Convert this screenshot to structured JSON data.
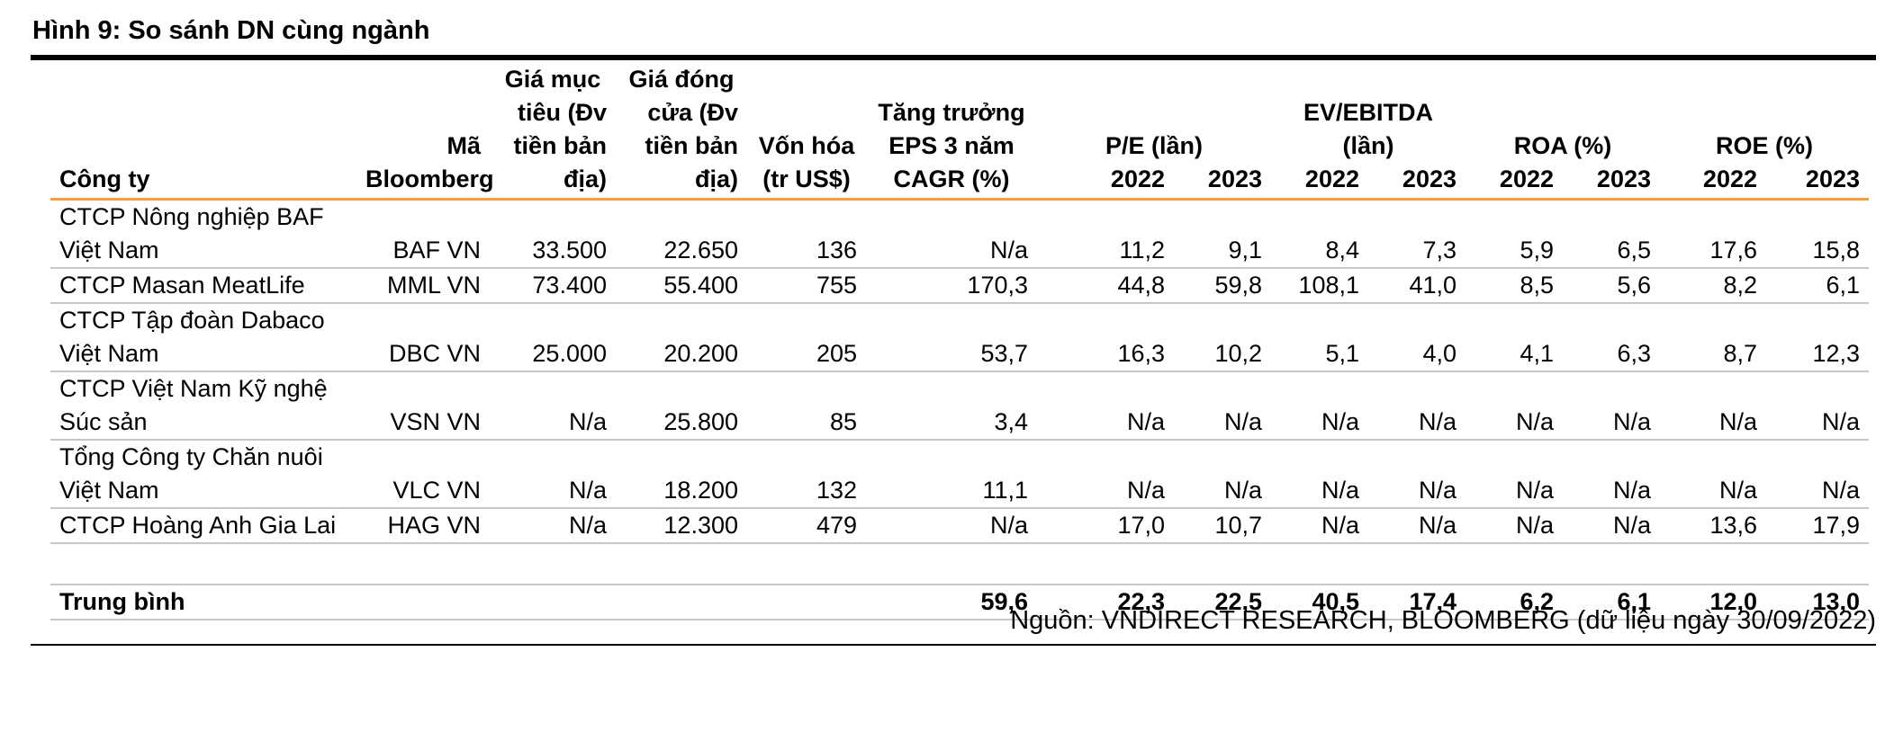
{
  "figure_title": "Hình 9: So sánh DN cùng ngành",
  "headers": {
    "company": "Công ty",
    "bloomberg_l1": "Mã",
    "bloomberg_l2": "Bloomberg",
    "target_l1": "Giá mục",
    "target_l2": "tiêu (Đv",
    "target_l3": "tiền bản",
    "target_l4": "địa)",
    "close_l1": "Giá đóng",
    "close_l2": "cửa (Đv",
    "close_l3": "tiền bản",
    "close_l4": "địa)",
    "mcap_l1": "Vốn hóa",
    "mcap_l2": "(tr US$)",
    "eps_l1": "Tăng trưởng",
    "eps_l2": "EPS 3 năm",
    "eps_l3": "CAGR (%)",
    "pe": "P/E (lần)",
    "ev_l1": "EV/EBITDA",
    "ev_l2": "(lần)",
    "roa": "ROA (%)",
    "roe": "ROE (%)",
    "y2022": "2022",
    "y2023": "2023"
  },
  "rows": [
    {
      "company_l1": "CTCP Nông nghiệp BAF",
      "company_l2": "Việt Nam",
      "ticker": "BAF VN",
      "target": "33.500",
      "close": "22.650",
      "mcap": "136",
      "eps_cagr": "N/a",
      "pe_2022": "11,2",
      "pe_2023": "9,1",
      "ev_2022": "8,4",
      "ev_2023": "7,3",
      "roa_2022": "5,9",
      "roa_2023": "6,5",
      "roe_2022": "17,6",
      "roe_2023": "15,8"
    },
    {
      "company_l1": "CTCP Masan MeatLife",
      "company_l2": "",
      "ticker": "MML VN",
      "target": "73.400",
      "close": "55.400",
      "mcap": "755",
      "eps_cagr": "170,3",
      "pe_2022": "44,8",
      "pe_2023": "59,8",
      "ev_2022": "108,1",
      "ev_2023": "41,0",
      "roa_2022": "8,5",
      "roa_2023": "5,6",
      "roe_2022": "8,2",
      "roe_2023": "6,1"
    },
    {
      "company_l1": "CTCP Tập đoàn Dabaco",
      "company_l2": "Việt Nam",
      "ticker": "DBC VN",
      "target": "25.000",
      "close": "20.200",
      "mcap": "205",
      "eps_cagr": "53,7",
      "pe_2022": "16,3",
      "pe_2023": "10,2",
      "ev_2022": "5,1",
      "ev_2023": "4,0",
      "roa_2022": "4,1",
      "roa_2023": "6,3",
      "roe_2022": "8,7",
      "roe_2023": "12,3"
    },
    {
      "company_l1": "CTCP Việt Nam Kỹ nghệ",
      "company_l2": "Súc sản",
      "ticker": "VSN VN",
      "target": "N/a",
      "close": "25.800",
      "mcap": "85",
      "eps_cagr": "3,4",
      "pe_2022": "N/a",
      "pe_2023": "N/a",
      "ev_2022": "N/a",
      "ev_2023": "N/a",
      "roa_2022": "N/a",
      "roa_2023": "N/a",
      "roe_2022": "N/a",
      "roe_2023": "N/a"
    },
    {
      "company_l1": "Tổng Công ty Chăn nuôi",
      "company_l2": "Việt Nam",
      "ticker": "VLC VN",
      "target": "N/a",
      "close": "18.200",
      "mcap": "132",
      "eps_cagr": "11,1",
      "pe_2022": "N/a",
      "pe_2023": "N/a",
      "ev_2022": "N/a",
      "ev_2023": "N/a",
      "roa_2022": "N/a",
      "roa_2023": "N/a",
      "roe_2022": "N/a",
      "roe_2023": "N/a"
    },
    {
      "company_l1": "CTCP Hoàng Anh Gia Lai",
      "company_l2": "",
      "ticker": "HAG VN",
      "target": "N/a",
      "close": "12.300",
      "mcap": "479",
      "eps_cagr": "N/a",
      "pe_2022": "17,0",
      "pe_2023": "10,7",
      "ev_2022": "N/a",
      "ev_2023": "N/a",
      "roa_2022": "N/a",
      "roa_2023": "N/a",
      "roe_2022": "13,6",
      "roe_2023": "17,9"
    }
  ],
  "average": {
    "label": "Trung bình",
    "eps_cagr": "59,6",
    "pe_2022": "22,3",
    "pe_2023": "22,5",
    "ev_2022": "40,5",
    "ev_2023": "17,4",
    "roa_2022": "6,2",
    "roa_2023": "6,1",
    "roe_2022": "12,0",
    "roe_2023": "13,0"
  },
  "source": "Nguồn: VNDIRECT RESEARCH, BLOOMBERG (dữ liệu ngày 30/09/2022)",
  "colors": {
    "header_rule": "#f0a040",
    "row_rule": "#c8c8c8",
    "frame_rule": "#000000"
  }
}
